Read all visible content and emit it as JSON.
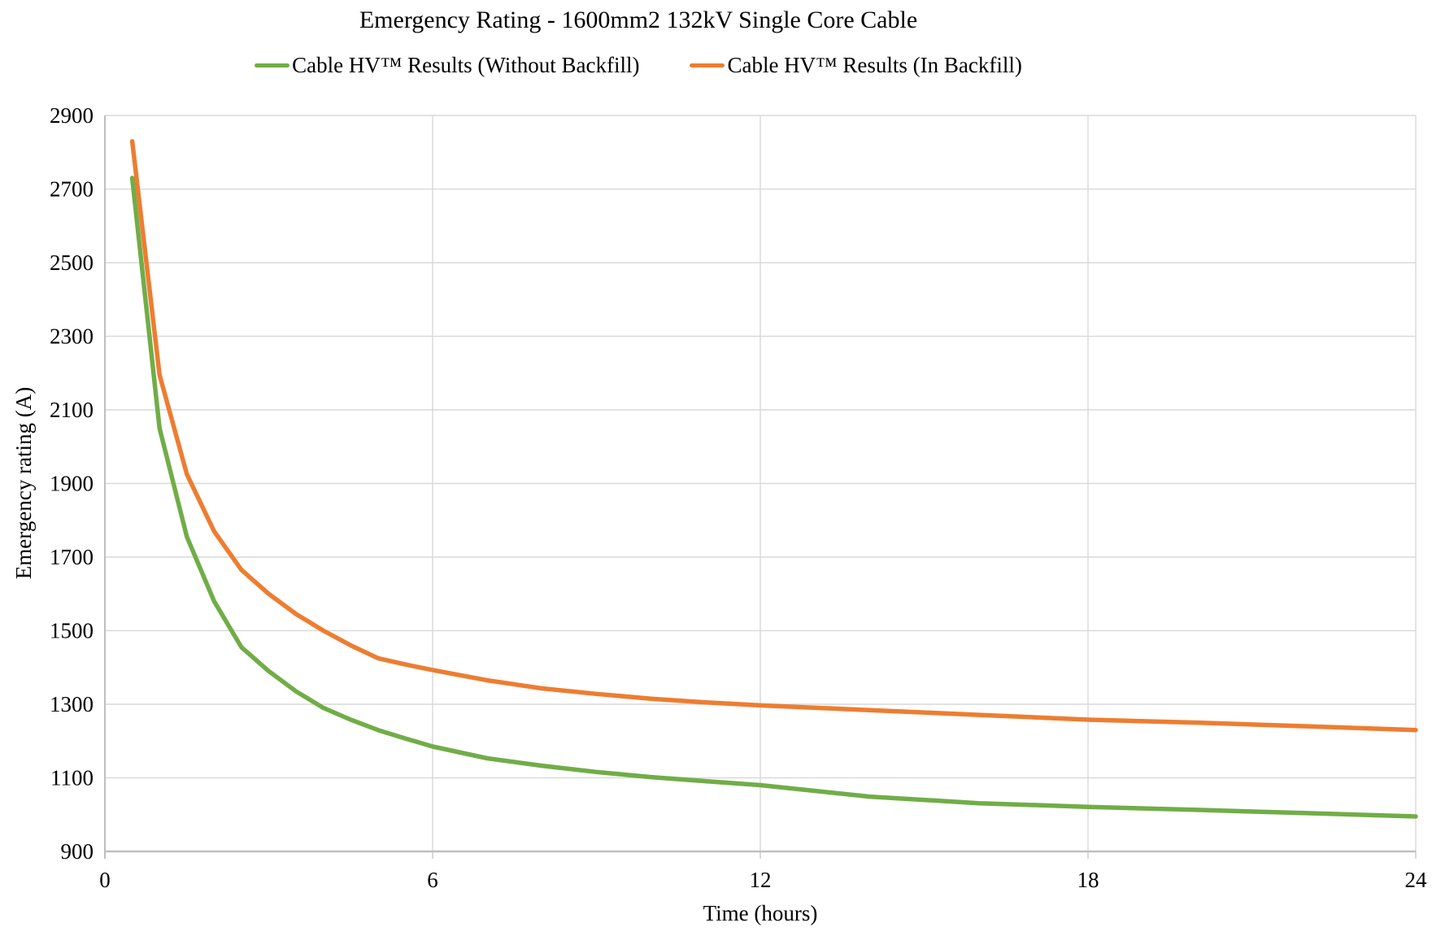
{
  "chart_data": {
    "type": "line",
    "title": "Emergency Rating - 1600mm2 132kV Single Core Cable",
    "xlabel": "Time (hours)",
    "ylabel": "Emergency rating (A)",
    "xlim": [
      0,
      24
    ],
    "ylim": [
      900,
      2900
    ],
    "x_ticks": [
      0,
      6,
      12,
      18,
      24
    ],
    "y_ticks": [
      900,
      1100,
      1300,
      1500,
      1700,
      1900,
      2100,
      2300,
      2500,
      2700,
      2900
    ],
    "grid": true,
    "legend_position": "top",
    "colors": {
      "grid": "#D9D9D9",
      "axis": "#BFBFBF",
      "text": "#000000",
      "background": "#FFFFFF"
    },
    "series": [
      {
        "name": "Cable HV™ Results (Without Backfill)",
        "color": "#70AD47",
        "points": [
          [
            0.5,
            2730
          ],
          [
            1,
            2050
          ],
          [
            1.5,
            1755
          ],
          [
            2,
            1580
          ],
          [
            2.5,
            1455
          ],
          [
            3,
            1390
          ],
          [
            3.5,
            1335
          ],
          [
            4,
            1290
          ],
          [
            4.5,
            1258
          ],
          [
            5,
            1230
          ],
          [
            5.5,
            1207
          ],
          [
            6,
            1185
          ],
          [
            7,
            1153
          ],
          [
            8,
            1133
          ],
          [
            9,
            1116
          ],
          [
            10,
            1102
          ],
          [
            11,
            1091
          ],
          [
            12,
            1080
          ],
          [
            14,
            1049
          ],
          [
            16,
            1031
          ],
          [
            18,
            1021
          ],
          [
            20,
            1013
          ],
          [
            22,
            1004
          ],
          [
            24,
            995
          ]
        ]
      },
      {
        "name": "Cable HV™ Results (In Backfill)",
        "color": "#ED7D31",
        "points": [
          [
            0.5,
            2830
          ],
          [
            1,
            2195
          ],
          [
            1.5,
            1925
          ],
          [
            2,
            1770
          ],
          [
            2.5,
            1665
          ],
          [
            3,
            1600
          ],
          [
            3.5,
            1545
          ],
          [
            4,
            1500
          ],
          [
            4.5,
            1460
          ],
          [
            5,
            1425
          ],
          [
            5.5,
            1408
          ],
          [
            6,
            1393
          ],
          [
            7,
            1365
          ],
          [
            8,
            1343
          ],
          [
            9,
            1328
          ],
          [
            10,
            1315
          ],
          [
            11,
            1305
          ],
          [
            12,
            1297
          ],
          [
            14,
            1284
          ],
          [
            16,
            1271
          ],
          [
            18,
            1258
          ],
          [
            20,
            1250
          ],
          [
            22,
            1240
          ],
          [
            24,
            1230
          ]
        ]
      }
    ]
  }
}
